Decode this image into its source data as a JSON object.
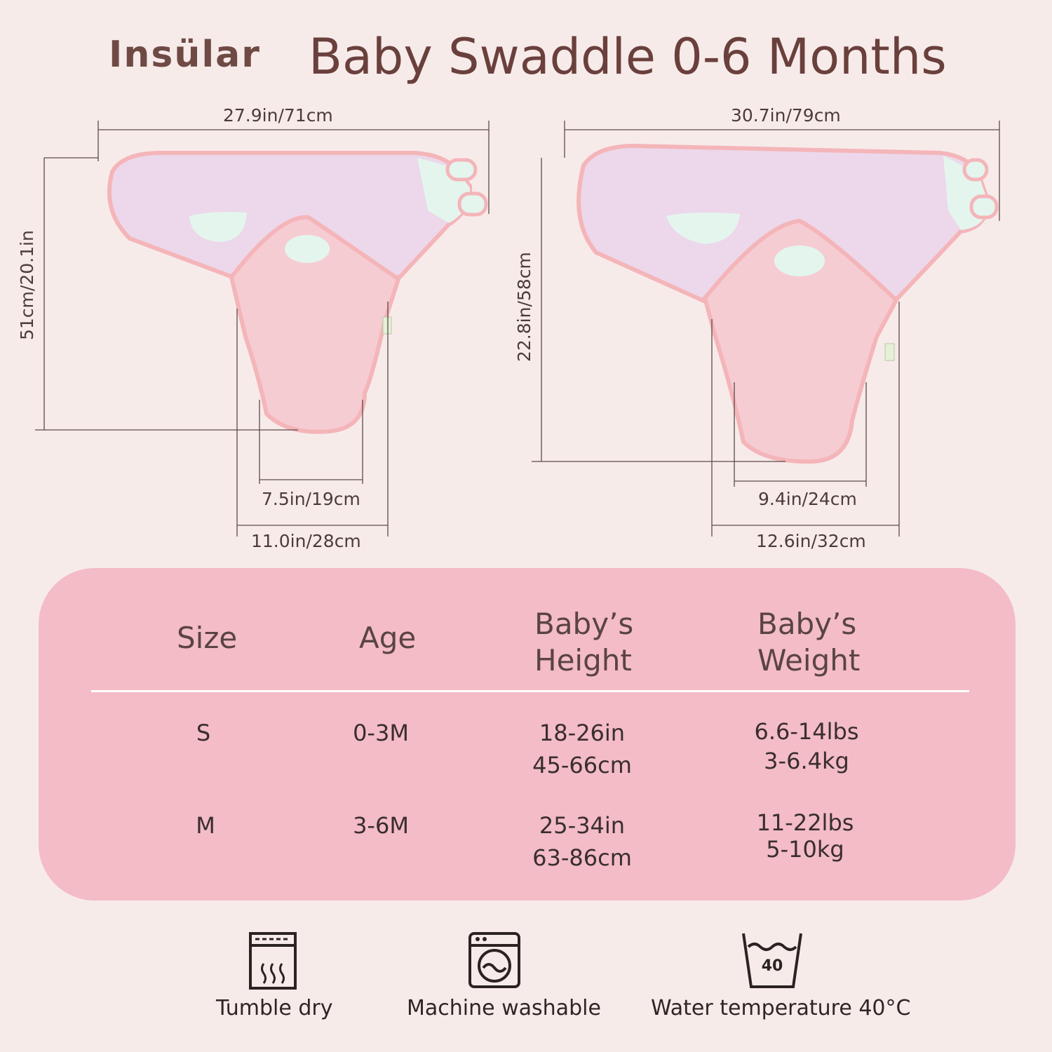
{
  "header": {
    "brand": "Insülar",
    "title": "Baby Swaddle 0-6 Months"
  },
  "dimensions": {
    "small": {
      "width_top": "27.9in/71cm",
      "height": "51cm/20.1in",
      "inner_bottom": "7.5in/19cm",
      "outer_bottom": "11.0in/28cm"
    },
    "medium": {
      "width_top": "30.7in/79cm",
      "height": "22.8in/58cm",
      "inner_bottom": "9.4in/24cm",
      "outer_bottom": "12.6in/32cm"
    }
  },
  "size_table": {
    "headers": {
      "size": "Size",
      "age": "Age",
      "height_line1": "Baby’s",
      "height_line2": "Height",
      "weight_line1": "Baby’s",
      "weight_line2": "Weight"
    },
    "rows": [
      {
        "size": "S",
        "age": "0-3M",
        "height_in": "18-26in",
        "height_cm": "45-66cm",
        "weight_lbs": "6.6-14lbs",
        "weight_kg": "3-6.4kg"
      },
      {
        "size": "M",
        "age": "3-6M",
        "height_in": "25-34in",
        "height_cm": "63-86cm",
        "weight_lbs": "11-22lbs",
        "weight_kg": "5-10kg"
      }
    ]
  },
  "care": {
    "tumble_dry": "Tumble dry",
    "machine_washable": "Machine washable",
    "water_temp": "Water temperature 40°C",
    "water_temp_badge": "40"
  },
  "colors": {
    "background": "#f7ebea",
    "panel": "#f3bcc6",
    "title": "#6a403c",
    "swaddle_pink": "#f5c9cf",
    "swaddle_lavender": "#ecd6ea",
    "swaddle_mint": "#e2f4ee"
  }
}
